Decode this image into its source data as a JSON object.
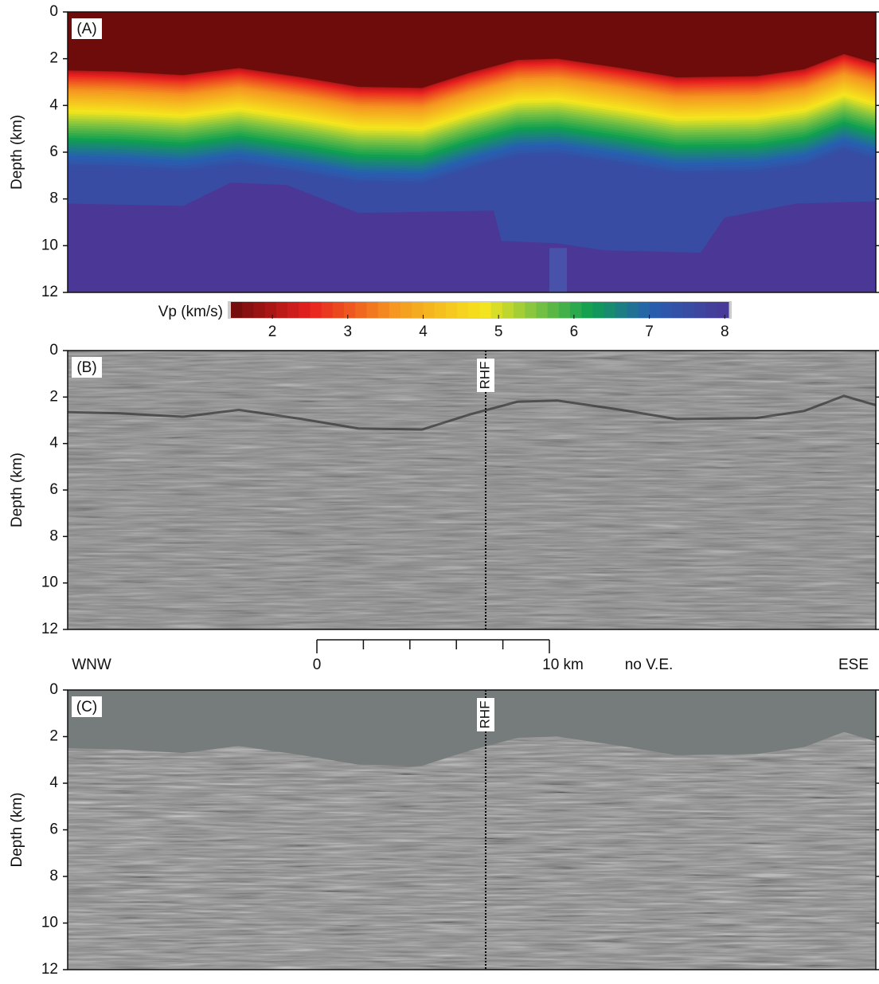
{
  "panels": [
    {
      "label": "(A)",
      "y_axis": {
        "label": "Depth (km)",
        "ylim": [
          0,
          12
        ],
        "ticks": [
          0,
          2,
          4,
          6,
          8,
          10,
          12
        ]
      }
    },
    {
      "label": "(B)",
      "marker": "RHF",
      "y_axis": {
        "label": "Depth (km)",
        "ylim": [
          0,
          12
        ],
        "ticks": [
          0,
          2,
          4,
          6,
          8,
          10,
          12
        ]
      }
    },
    {
      "label": "(C)",
      "marker": "RHF",
      "y_axis": {
        "label": "Depth (km)",
        "ylim": [
          0,
          12
        ],
        "ticks": [
          0,
          2,
          4,
          6,
          8,
          10,
          12
        ]
      }
    }
  ],
  "colorbar": {
    "label": "Vp (km/s)",
    "range": [
      1.45,
      8.05
    ],
    "ticks": [
      2,
      3,
      4,
      5,
      6,
      7,
      8
    ]
  },
  "scale_bar": {
    "range": [
      0,
      10
    ],
    "ticks": [
      0,
      2,
      4,
      6,
      8,
      {
        "value": 10,
        "label": "10 km"
      }
    ]
  },
  "orientation": {
    "left": "WNW",
    "right": "ESE"
  },
  "exaggeration": "no V.E."
}
